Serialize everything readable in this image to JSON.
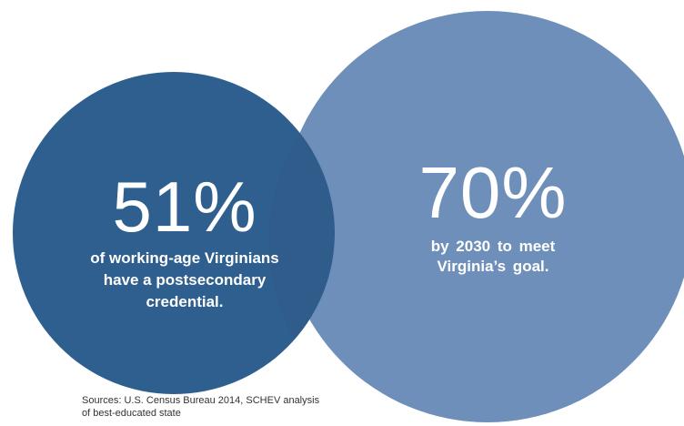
{
  "colors": {
    "current_circle": "#2e5f8f",
    "goal_circle": "#6f8fbb",
    "overlap": "#2f5c8b",
    "text_on_circle": "#ffffff",
    "source_text": "#333333"
  },
  "current": {
    "value": "51%",
    "caption_line1": "of working-age Virginians",
    "caption_line2": "have a postsecondary",
    "caption_line3": "credential."
  },
  "goal": {
    "value": "70%",
    "caption_line1": "by 2030 to meet",
    "caption_line2": "Virginia’s goal."
  },
  "source": {
    "line1": "Sources: U.S. Census Bureau 2014, SCHEV analysis",
    "line2": "of best-educated state"
  }
}
